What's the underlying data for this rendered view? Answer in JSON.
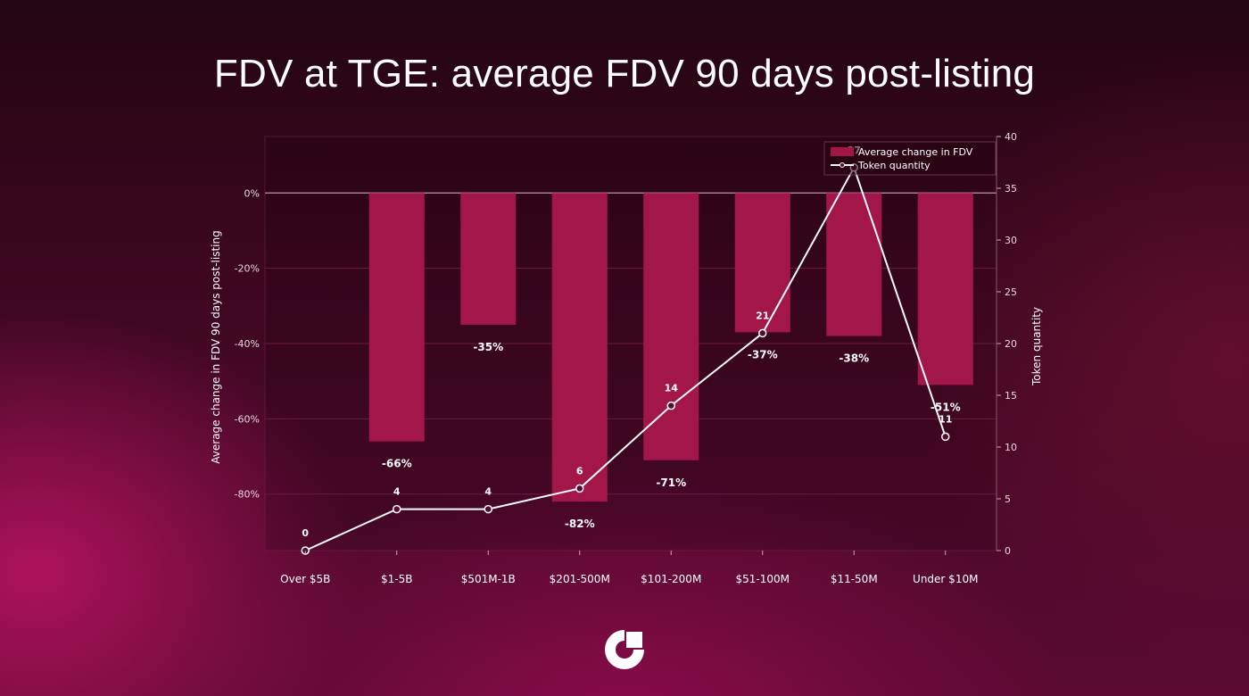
{
  "page": {
    "title": "FDV at TGE: average FDV 90 days post-listing"
  },
  "colors": {
    "bar": "#a3164a",
    "line": "#ffffff",
    "grid": "#6a1a3e",
    "text": "#ffffff"
  },
  "chart_data": {
    "type": "bar",
    "title": "FDV at TGE: average FDV 90 days post-listing",
    "categories": [
      "Over $5B",
      "$1-5B",
      "$501M-1B",
      "$201-500M",
      "$101-200M",
      "$51-100M",
      "$11-50M",
      "Under $10M"
    ],
    "series": [
      {
        "name": "Average change in FDV",
        "type": "bar",
        "axis": "left",
        "values": [
          0,
          -66,
          -35,
          -82,
          -71,
          -37,
          -38,
          -51
        ],
        "labels": [
          "",
          "-66%",
          "-35%",
          "-82%",
          "-71%",
          "-37%",
          "-38%",
          "-51%"
        ]
      },
      {
        "name": "Token quantity",
        "type": "line",
        "axis": "right",
        "values": [
          0,
          4,
          4,
          6,
          14,
          21,
          37,
          11
        ],
        "labels": [
          "0",
          "4",
          "4",
          "6",
          "14",
          "21",
          "37",
          "11"
        ]
      }
    ],
    "ylabel": "Average change in FDV 90 days post-listing",
    "y2label": "Token quantity",
    "ylim": [
      -95,
      15
    ],
    "y2lim": [
      0,
      40
    ],
    "yticks": [
      0,
      -20,
      -40,
      -60,
      -80
    ],
    "ytick_labels": [
      "0%",
      "-20%",
      "-40%",
      "-60%",
      "-80%"
    ],
    "y2ticks": [
      0,
      5,
      10,
      15,
      20,
      25,
      30,
      35,
      40
    ],
    "y2tick_labels": [
      "0",
      "5",
      "10",
      "15",
      "20",
      "25",
      "30",
      "35",
      "40"
    ],
    "grid": true,
    "legend": "top-right"
  }
}
